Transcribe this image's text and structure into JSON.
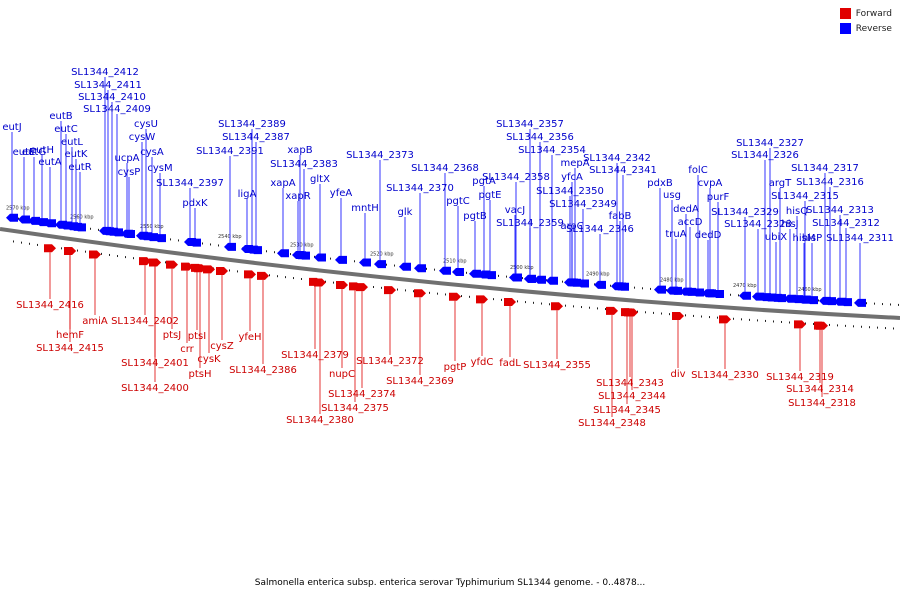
{
  "legend": {
    "forward_label": "Forward",
    "reverse_label": "Reverse",
    "forward_color": "#e00000",
    "reverse_color": "#0000ff"
  },
  "caption": "Salmonella enterica subsp. enterica serovar Typhimurium SL1344 genome. - 0..4878...",
  "ticks": [
    "2570 kbp",
    "2560 kbp",
    "2550 kbp",
    "2540 kbp",
    "2530 kbp",
    "2520 kbp",
    "2510 kbp",
    "2500 kbp",
    "2490 kbp",
    "2480 kbp",
    "2470 kbp",
    "2460 kbp"
  ],
  "reverse_genes": [
    "eutJ",
    "eutE",
    "eutG",
    "eutH",
    "eutA",
    "eutB",
    "eutC",
    "eutL",
    "eutK",
    "eutR",
    "SL1344_2412",
    "SL1344_2411",
    "SL1344_2410",
    "SL1344_2409",
    "cysU",
    "cysW",
    "ucpA",
    "cysA",
    "cysP",
    "cysM",
    "SL1344_2397",
    "pdxK",
    "SL1344_2389",
    "SL1344_2387",
    "SL1344_2391",
    "xapB",
    "SL1344_2383",
    "ligA",
    "xapA",
    "gltX",
    "xapR",
    "yfeA",
    "mntH",
    "SL1344_2373",
    "SL1344_2368",
    "SL1344_2370",
    "glk",
    "pgtC",
    "pgtA",
    "pgtE",
    "pgtB",
    "vacJ",
    "SL1344_2357",
    "SL1344_2356",
    "SL1344_2354",
    "SL1344_2358",
    "mepA",
    "yfcA",
    "SL1344_2350",
    "SL1344_2349",
    "SL1344_2359",
    "aroC",
    "fabB",
    "SL1344_2346",
    "SL1344_2342",
    "SL1344_2341",
    "pdxB",
    "folC",
    "cvpA",
    "usg",
    "purF",
    "dedA",
    "accD",
    "truA",
    "dedD",
    "SL1344_2327",
    "SL1344_2326",
    "SL1344_2317",
    "argT",
    "SL1344_2316",
    "SL1344_2315",
    "SL1344_2329",
    "hisJ",
    "SL1344_2328",
    "hisQ",
    "SL1344_2313",
    "hisM",
    "SL1344_2312",
    "ubiX",
    "hisP",
    "SL1344_2311"
  ],
  "forward_genes": [
    "SL1344_2416",
    "hemF",
    "amiA",
    "SL1344_2415",
    "SL1344_2402",
    "ptsJ",
    "crr",
    "ptsI",
    "SL1344_2401",
    "cysK",
    "cysZ",
    "ptsH",
    "SL1344_2400",
    "yfeH",
    "SL1344_2386",
    "SL1344_2379",
    "nupC",
    "SL1344_2372",
    "SL1344_2374",
    "SL1344_2375",
    "SL1344_2380",
    "SL1344_2369",
    "pgtP",
    "yfdC",
    "fadL",
    "SL1344_2355",
    "SL1344_2343",
    "SL1344_2344",
    "SL1344_2345",
    "SL1344_2348",
    "div",
    "SL1344_2330",
    "SL1344_2319",
    "SL1344_2314",
    "SL1344_2318"
  ]
}
